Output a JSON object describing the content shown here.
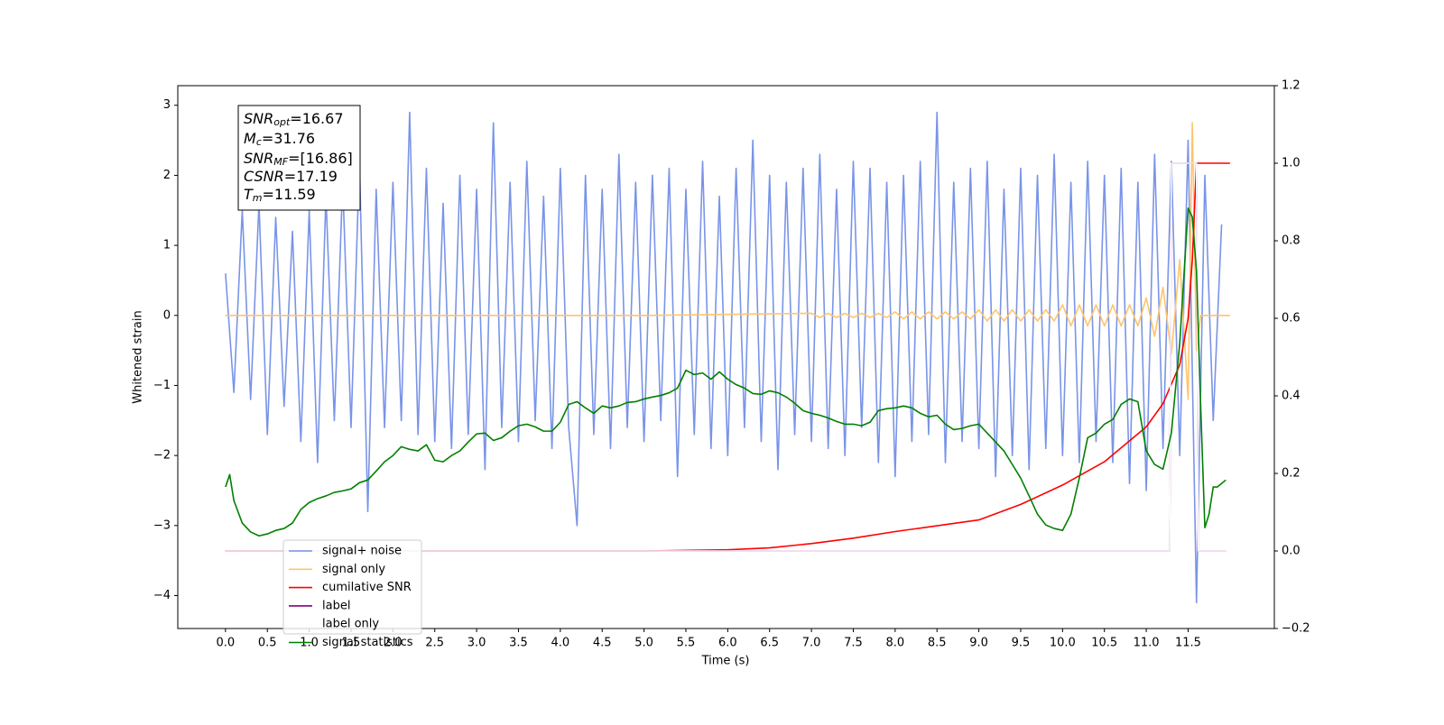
{
  "chart_data": {
    "type": "line",
    "xlabel": "Time (s)",
    "ylabel": "Whitened strain",
    "xlim": [
      -0.57,
      12.53
    ],
    "ylim": [
      -4.47,
      3.28
    ],
    "y2lim": [
      -0.2,
      1.2
    ],
    "xticks": [
      {
        "value": 0,
        "label": "0.0"
      },
      0.5,
      {
        "value": 1,
        "label": "1.0"
      },
      1.5,
      {
        "value": 2,
        "label": "2.0"
      },
      2.5,
      {
        "value": 3,
        "label": "3.0"
      },
      3.5,
      {
        "value": 4,
        "label": "4.0"
      },
      4.5,
      {
        "value": 5,
        "label": "5.0"
      },
      5.5,
      {
        "value": 6,
        "label": "6.0"
      },
      6.5,
      {
        "value": 7,
        "label": "7.0"
      },
      7.5,
      {
        "value": 8,
        "label": "8.0"
      },
      8.5,
      {
        "value": 9,
        "label": "9.0"
      },
      9.5,
      {
        "value": 10,
        "label": "10.0"
      },
      10.5,
      {
        "value": 11,
        "label": "11.0"
      },
      11.5
    ],
    "yticks": [
      {
        "value": -4,
        "label": "−4"
      },
      {
        "value": -3,
        "label": "−3"
      },
      {
        "value": -2,
        "label": "−2"
      },
      {
        "value": -1,
        "label": "−1"
      },
      0,
      1,
      2,
      3
    ],
    "y2ticks": [
      {
        "value": -0.2,
        "label": "−0.2"
      },
      {
        "value": 0,
        "label": "0.0"
      },
      0.2,
      0.4,
      0.6,
      0.8,
      {
        "value": 1,
        "label": "1.0"
      },
      1.2
    ],
    "legend": "lower left",
    "annotations": [
      {
        "main": "SNR",
        "sub": "opt",
        "rest": "=16.67"
      },
      {
        "main": "M",
        "sub": "c",
        "rest": "=31.76"
      },
      {
        "main": "SNR",
        "sub": "MF",
        "rest": "=[16.86]"
      },
      {
        "main": "CSNR",
        "rest": "=17.19"
      },
      {
        "main": "T",
        "sub": "m",
        "rest": "=11.59"
      }
    ],
    "series": [
      {
        "name": "signal+ noise",
        "color": "#7994e8",
        "axis": "y",
        "x": [
          0.0,
          0.1,
          0.2,
          0.3,
          0.4,
          0.5,
          0.6,
          0.7,
          0.8,
          0.9,
          1.0,
          1.1,
          1.2,
          1.3,
          1.4,
          1.5,
          1.6,
          1.7,
          1.8,
          1.9,
          2.0,
          2.1,
          2.2,
          2.3,
          2.4,
          2.5,
          2.6,
          2.7,
          2.8,
          2.9,
          3.0,
          3.1,
          3.2,
          3.3,
          3.4,
          3.5,
          3.6,
          3.7,
          3.8,
          3.9,
          4.0,
          4.1,
          4.2,
          4.3,
          4.4,
          4.5,
          4.6,
          4.7,
          4.8,
          4.9,
          5.0,
          5.1,
          5.2,
          5.3,
          5.4,
          5.5,
          5.6,
          5.7,
          5.8,
          5.9,
          6.0,
          6.1,
          6.2,
          6.3,
          6.4,
          6.5,
          6.6,
          6.7,
          6.8,
          6.9,
          7.0,
          7.1,
          7.2,
          7.3,
          7.4,
          7.5,
          7.6,
          7.7,
          7.8,
          7.9,
          8.0,
          8.1,
          8.2,
          8.3,
          8.4,
          8.5,
          8.6,
          8.7,
          8.8,
          8.9,
          9.0,
          9.1,
          9.2,
          9.3,
          9.4,
          9.5,
          9.6,
          9.7,
          9.8,
          9.9,
          10.0,
          10.1,
          10.2,
          10.3,
          10.4,
          10.5,
          10.6,
          10.7,
          10.8,
          10.9,
          11.0,
          11.1,
          11.2,
          11.3,
          11.4,
          11.5,
          11.6,
          11.7,
          11.8,
          11.9
        ],
        "values": [
          0.6,
          -1.1,
          1.5,
          -1.2,
          1.6,
          -1.7,
          1.4,
          -1.3,
          1.2,
          -1.8,
          1.5,
          -2.1,
          1.7,
          -1.5,
          1.9,
          -1.6,
          2.2,
          -2.8,
          1.8,
          -1.6,
          1.9,
          -1.5,
          2.9,
          -1.7,
          2.1,
          -1.8,
          1.6,
          -1.9,
          2.0,
          -1.7,
          1.8,
          -2.2,
          2.75,
          -1.6,
          1.9,
          -1.8,
          2.2,
          -1.5,
          1.7,
          -1.9,
          2.1,
          -1.6,
          -3.0,
          2.0,
          -1.7,
          1.8,
          -1.9,
          2.3,
          -1.6,
          1.9,
          -1.8,
          2.0,
          -1.5,
          2.1,
          -2.3,
          1.8,
          -1.7,
          2.2,
          -1.9,
          1.7,
          -2.0,
          2.1,
          -1.6,
          2.5,
          -1.8,
          2.0,
          -2.2,
          1.9,
          -1.7,
          2.1,
          -1.8,
          2.3,
          -1.9,
          1.8,
          -2.0,
          2.2,
          -1.6,
          2.1,
          -2.1,
          1.9,
          -2.3,
          2.0,
          -1.8,
          2.2,
          -1.7,
          2.9,
          -2.1,
          1.9,
          -1.8,
          2.1,
          -1.9,
          2.2,
          -2.3,
          1.8,
          -2.0,
          2.1,
          -2.2,
          2.0,
          -1.9,
          2.3,
          -2.0,
          1.9,
          -2.1,
          2.2,
          -1.8,
          2.0,
          -2.1,
          2.1,
          -2.4,
          1.9,
          -2.5,
          2.3,
          -1.9,
          2.2,
          -2.0,
          2.5,
          -4.1,
          2.0,
          -1.5,
          1.3
        ]
      },
      {
        "name": "signal only",
        "color": "#ffc46c",
        "axis": "y",
        "x": [
          0.0,
          5.0,
          7.0,
          7.1,
          7.2,
          7.3,
          7.4,
          7.5,
          7.6,
          7.7,
          7.8,
          7.9,
          8.0,
          8.1,
          8.2,
          8.3,
          8.4,
          8.5,
          8.6,
          8.7,
          8.8,
          8.9,
          9.0,
          9.1,
          9.2,
          9.3,
          9.4,
          9.5,
          9.6,
          9.7,
          9.8,
          9.9,
          10.0,
          10.1,
          10.2,
          10.3,
          10.4,
          10.5,
          10.6,
          10.7,
          10.8,
          10.9,
          11.0,
          11.1,
          11.2,
          11.3,
          11.4,
          11.5,
          11.55,
          11.6,
          11.65,
          12.0
        ],
        "values": [
          0,
          0,
          0.03,
          -0.03,
          0.03,
          -0.03,
          0.03,
          -0.03,
          0.03,
          -0.03,
          0.03,
          -0.03,
          0.05,
          -0.05,
          0.05,
          -0.05,
          0.05,
          -0.05,
          0.05,
          -0.05,
          0.05,
          -0.05,
          0.08,
          -0.08,
          0.08,
          -0.08,
          0.08,
          -0.08,
          0.08,
          -0.08,
          0.08,
          -0.08,
          0.15,
          -0.15,
          0.15,
          -0.15,
          0.15,
          -0.15,
          0.15,
          -0.15,
          0.15,
          -0.15,
          0.25,
          -0.3,
          0.4,
          -0.55,
          0.8,
          -1.2,
          2.75,
          -0.5,
          0,
          0
        ]
      },
      {
        "name": "cumilative SNR",
        "color": "#ff0000",
        "axis": "y2",
        "x": [
          0.0,
          5.0,
          6.0,
          6.5,
          7.0,
          7.5,
          8.0,
          8.5,
          9.0,
          9.5,
          10.0,
          10.5,
          11.0,
          11.2,
          11.4,
          11.5,
          11.55,
          11.6,
          12.0
        ],
        "values": [
          0,
          0,
          0.003,
          0.008,
          0.019,
          0.033,
          0.05,
          0.065,
          0.08,
          0.12,
          0.17,
          0.23,
          0.32,
          0.38,
          0.48,
          0.6,
          0.75,
          1.0,
          1.0
        ]
      },
      {
        "name": "label",
        "color": "#800080",
        "axis": "y2",
        "x": [
          0.0,
          11.28,
          11.3,
          11.6,
          11.62,
          11.95
        ],
        "values": [
          0,
          0,
          1,
          1,
          0,
          0
        ]
      },
      {
        "name": "label only",
        "color": "#ffffff",
        "axis": "y2",
        "x": [
          0.0,
          11.28,
          11.3,
          11.6,
          11.62,
          11.95
        ],
        "values": [
          0,
          0,
          1,
          1,
          0,
          0
        ]
      },
      {
        "name": "signal statistics",
        "color": "#008000",
        "axis": "y2",
        "x": [
          0.0,
          0.05,
          0.1,
          0.2,
          0.3,
          0.4,
          0.5,
          0.6,
          0.7,
          0.8,
          0.9,
          1.0,
          1.1,
          1.2,
          1.3,
          1.4,
          1.5,
          1.6,
          1.7,
          1.8,
          1.9,
          2.0,
          2.1,
          2.2,
          2.3,
          2.4,
          2.5,
          2.6,
          2.7,
          2.8,
          2.9,
          3.0,
          3.1,
          3.2,
          3.3,
          3.4,
          3.5,
          3.6,
          3.7,
          3.8,
          3.9,
          4.0,
          4.1,
          4.2,
          4.3,
          4.4,
          4.5,
          4.6,
          4.7,
          4.8,
          4.9,
          5.0,
          5.1,
          5.2,
          5.3,
          5.4,
          5.5,
          5.6,
          5.7,
          5.8,
          5.9,
          6.0,
          6.1,
          6.2,
          6.3,
          6.4,
          6.5,
          6.6,
          6.7,
          6.8,
          6.9,
          7.0,
          7.1,
          7.2,
          7.3,
          7.4,
          7.5,
          7.6,
          7.7,
          7.8,
          7.9,
          8.0,
          8.1,
          8.2,
          8.3,
          8.4,
          8.5,
          8.6,
          8.7,
          8.8,
          8.9,
          9.0,
          9.1,
          9.2,
          9.3,
          9.4,
          9.5,
          9.6,
          9.7,
          9.8,
          9.9,
          10.0,
          10.1,
          10.2,
          10.3,
          10.4,
          10.5,
          10.6,
          10.7,
          10.8,
          10.9,
          11.0,
          11.1,
          11.2,
          11.3,
          11.4,
          11.5,
          11.55,
          11.6,
          11.65,
          11.7,
          11.75,
          11.8,
          11.85,
          11.95
        ],
        "values": [
          0.165,
          0.197,
          0.13,
          0.072,
          0.049,
          0.039,
          0.044,
          0.053,
          0.058,
          0.072,
          0.107,
          0.125,
          0.135,
          0.142,
          0.151,
          0.155,
          0.16,
          0.176,
          0.183,
          0.206,
          0.23,
          0.246,
          0.269,
          0.262,
          0.258,
          0.274,
          0.234,
          0.23,
          0.246,
          0.258,
          0.281,
          0.302,
          0.304,
          0.285,
          0.292,
          0.309,
          0.323,
          0.327,
          0.32,
          0.309,
          0.309,
          0.332,
          0.378,
          0.385,
          0.369,
          0.355,
          0.374,
          0.369,
          0.374,
          0.383,
          0.385,
          0.392,
          0.397,
          0.401,
          0.408,
          0.42,
          0.466,
          0.455,
          0.459,
          0.443,
          0.462,
          0.443,
          0.429,
          0.42,
          0.406,
          0.404,
          0.413,
          0.408,
          0.397,
          0.381,
          0.362,
          0.355,
          0.35,
          0.343,
          0.334,
          0.327,
          0.327,
          0.323,
          0.332,
          0.362,
          0.367,
          0.369,
          0.374,
          0.369,
          0.355,
          0.346,
          0.35,
          0.327,
          0.313,
          0.316,
          0.323,
          0.327,
          0.304,
          0.281,
          0.258,
          0.223,
          0.188,
          0.142,
          0.095,
          0.067,
          0.058,
          0.053,
          0.095,
          0.188,
          0.292,
          0.304,
          0.327,
          0.339,
          0.378,
          0.392,
          0.385,
          0.258,
          0.223,
          0.211,
          0.304,
          0.536,
          0.884,
          0.861,
          0.722,
          0.374,
          0.06,
          0.095,
          0.165,
          0.165,
          0.183
        ]
      }
    ]
  }
}
